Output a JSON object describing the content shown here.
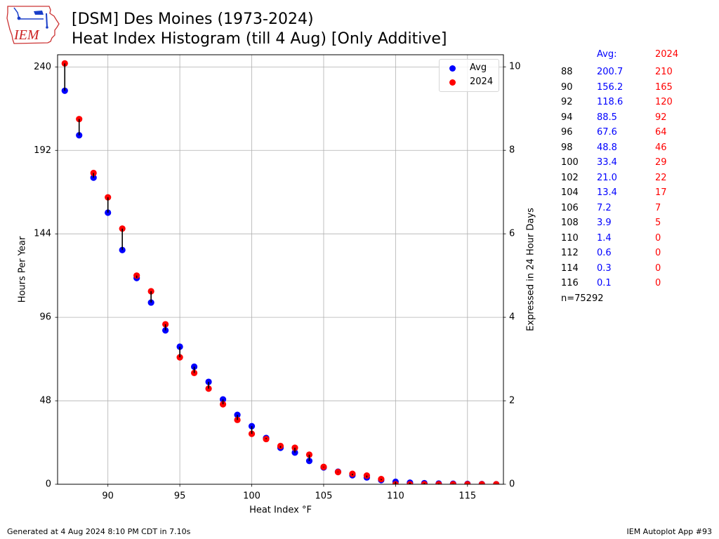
{
  "logo": {
    "text": "IEM",
    "icon": "iowa-state-outline-icon"
  },
  "chart_data": {
    "type": "scatter",
    "title": [
      "[DSM] Des Moines (1973-2024)",
      "Heat Index Histogram (till 4 Aug) [Only Additive]"
    ],
    "xlabel": "Heat Index °F",
    "ylabel": "Hours Per Year",
    "y2label": "Expressed in 24 Hour Days",
    "xlim": [
      86.5,
      117.5
    ],
    "ylim": [
      0,
      247
    ],
    "y2lim": [
      0,
      10.29
    ],
    "xticks": [
      90,
      95,
      100,
      105,
      110,
      115
    ],
    "yticks": [
      0,
      48,
      96,
      144,
      192,
      240
    ],
    "y2ticks": [
      0,
      2,
      4,
      6,
      8,
      10
    ],
    "grid": true,
    "legend_position": "top-right",
    "connector_color": "#000000",
    "x": [
      87,
      88,
      89,
      90,
      91,
      92,
      93,
      94,
      95,
      96,
      97,
      98,
      99,
      100,
      101,
      102,
      103,
      104,
      105,
      106,
      107,
      108,
      109,
      110,
      111,
      112,
      113,
      114,
      115,
      116,
      117
    ],
    "series": [
      {
        "name": "Avg",
        "color": "#0000ff",
        "values": [
          226.3,
          200.7,
          176.3,
          156.2,
          134.7,
          118.6,
          104.5,
          88.5,
          79.1,
          67.6,
          58.9,
          48.8,
          39.9,
          33.4,
          26.6,
          21.0,
          18.2,
          13.4,
          9.7,
          7.2,
          5.2,
          3.9,
          2.4,
          1.4,
          0.9,
          0.6,
          0.4,
          0.3,
          0.2,
          0.1,
          0.0
        ]
      },
      {
        "name": "2024",
        "color": "#ff0000",
        "values": [
          242,
          210,
          179,
          165,
          147,
          120,
          111,
          92,
          73,
          64,
          55,
          46,
          37,
          29,
          26,
          22,
          21,
          17,
          10,
          7,
          6,
          5,
          3,
          0,
          0,
          0,
          0,
          0,
          0,
          0,
          0
        ]
      }
    ]
  },
  "table": {
    "header_avg": "Avg:",
    "header_year": "2024",
    "rows": [
      {
        "temp": "88",
        "avg": "200.7",
        "year": "210"
      },
      {
        "temp": "90",
        "avg": "156.2",
        "year": "165"
      },
      {
        "temp": "92",
        "avg": "118.6",
        "year": "120"
      },
      {
        "temp": "94",
        "avg": "88.5",
        "year": "92"
      },
      {
        "temp": "96",
        "avg": "67.6",
        "year": "64"
      },
      {
        "temp": "98",
        "avg": "48.8",
        "year": "46"
      },
      {
        "temp": "100",
        "avg": "33.4",
        "year": "29"
      },
      {
        "temp": "102",
        "avg": "21.0",
        "year": "22"
      },
      {
        "temp": "104",
        "avg": "13.4",
        "year": "17"
      },
      {
        "temp": "106",
        "avg": "7.2",
        "year": "7"
      },
      {
        "temp": "108",
        "avg": "3.9",
        "year": "5"
      },
      {
        "temp": "110",
        "avg": "1.4",
        "year": "0"
      },
      {
        "temp": "112",
        "avg": "0.6",
        "year": "0"
      },
      {
        "temp": "114",
        "avg": "0.3",
        "year": "0"
      },
      {
        "temp": "116",
        "avg": "0.1",
        "year": "0"
      }
    ],
    "sample_size": "n=75292"
  },
  "footer": {
    "generated": "Generated at 4 Aug 2024 8:10 PM CDT in 7.10s",
    "app": "IEM Autoplot App #93"
  }
}
